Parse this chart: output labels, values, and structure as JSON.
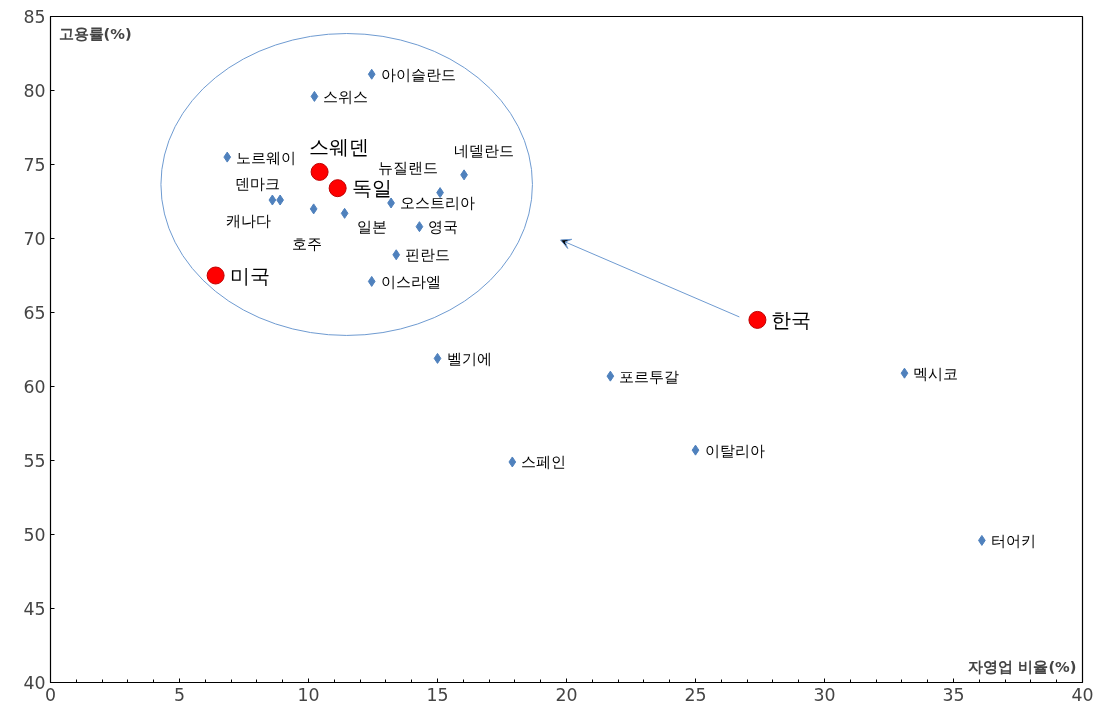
{
  "chart_data": {
    "type": "scatter",
    "xlabel": "자영업 비율(%)",
    "ylabel": "고용률(%)",
    "xlim": [
      0,
      40
    ],
    "ylim": [
      40,
      85
    ],
    "xticks": [
      0,
      5,
      10,
      15,
      20,
      25,
      30,
      35,
      40
    ],
    "yticks": [
      40,
      45,
      50,
      55,
      60,
      65,
      70,
      75,
      80,
      85
    ],
    "grid": false,
    "series": [
      {
        "marker": "diamond",
        "color": "#4f81bd",
        "x": [
          12.45,
          10.23,
          6.85,
          16.03,
          15.1,
          8.6,
          8.9,
          10.2,
          11.4,
          13.2,
          14.3,
          13.4,
          12.45,
          15.0,
          21.7,
          33.1,
          17.9,
          25.0,
          36.1
        ],
        "values": [
          81.1,
          79.6,
          75.5,
          74.3,
          73.1,
          72.6,
          72.6,
          72.0,
          71.7,
          72.4,
          70.8,
          68.9,
          67.1,
          61.9,
          60.7,
          60.9,
          54.9,
          55.7,
          49.6
        ]
      },
      {
        "marker": "circle",
        "color": "#ff0000",
        "x": [
          10.43,
          11.13,
          6.4,
          27.4
        ],
        "values": [
          74.5,
          73.4,
          67.5,
          64.5
        ]
      }
    ],
    "annotations": [
      {
        "text": "아이슬란드",
        "x": 12.45,
        "y": 81.1
      },
      {
        "text": "스위스",
        "x": 10.23,
        "y": 79.6
      },
      {
        "text": "노르웨이",
        "x": 6.85,
        "y": 75.5
      },
      {
        "text": "네델란드",
        "x": 16.03,
        "y": 74.3
      },
      {
        "text": "뉴질랜드",
        "x": 15.1,
        "y": 73.1
      },
      {
        "text": "덴마크",
        "x": 8.6,
        "y": 72.6
      },
      {
        "text": "캐나다",
        "x": 8.9,
        "y": 72.6
      },
      {
        "text": "호주",
        "x": 10.2,
        "y": 72.0
      },
      {
        "text": "일본",
        "x": 11.4,
        "y": 71.7
      },
      {
        "text": "오스트리아",
        "x": 13.2,
        "y": 72.4
      },
      {
        "text": "영국",
        "x": 14.3,
        "y": 70.8
      },
      {
        "text": "핀란드",
        "x": 13.4,
        "y": 68.9
      },
      {
        "text": "이스라엘",
        "x": 12.45,
        "y": 67.1
      },
      {
        "text": "벨기에",
        "x": 15.0,
        "y": 61.9
      },
      {
        "text": "포르투갈",
        "x": 21.7,
        "y": 60.7
      },
      {
        "text": "멕시코",
        "x": 33.1,
        "y": 60.9
      },
      {
        "text": "스페인",
        "x": 17.9,
        "y": 54.9
      },
      {
        "text": "이탈리아",
        "x": 25.0,
        "y": 55.7
      },
      {
        "text": "터어키",
        "x": 36.1,
        "y": 49.6
      },
      {
        "text": "스웨덴",
        "x": 10.43,
        "y": 74.5
      },
      {
        "text": "독일",
        "x": 11.13,
        "y": 73.4
      },
      {
        "text": "미국",
        "x": 6.4,
        "y": 67.5
      },
      {
        "text": "한국",
        "x": 27.4,
        "y": 64.5
      }
    ]
  }
}
